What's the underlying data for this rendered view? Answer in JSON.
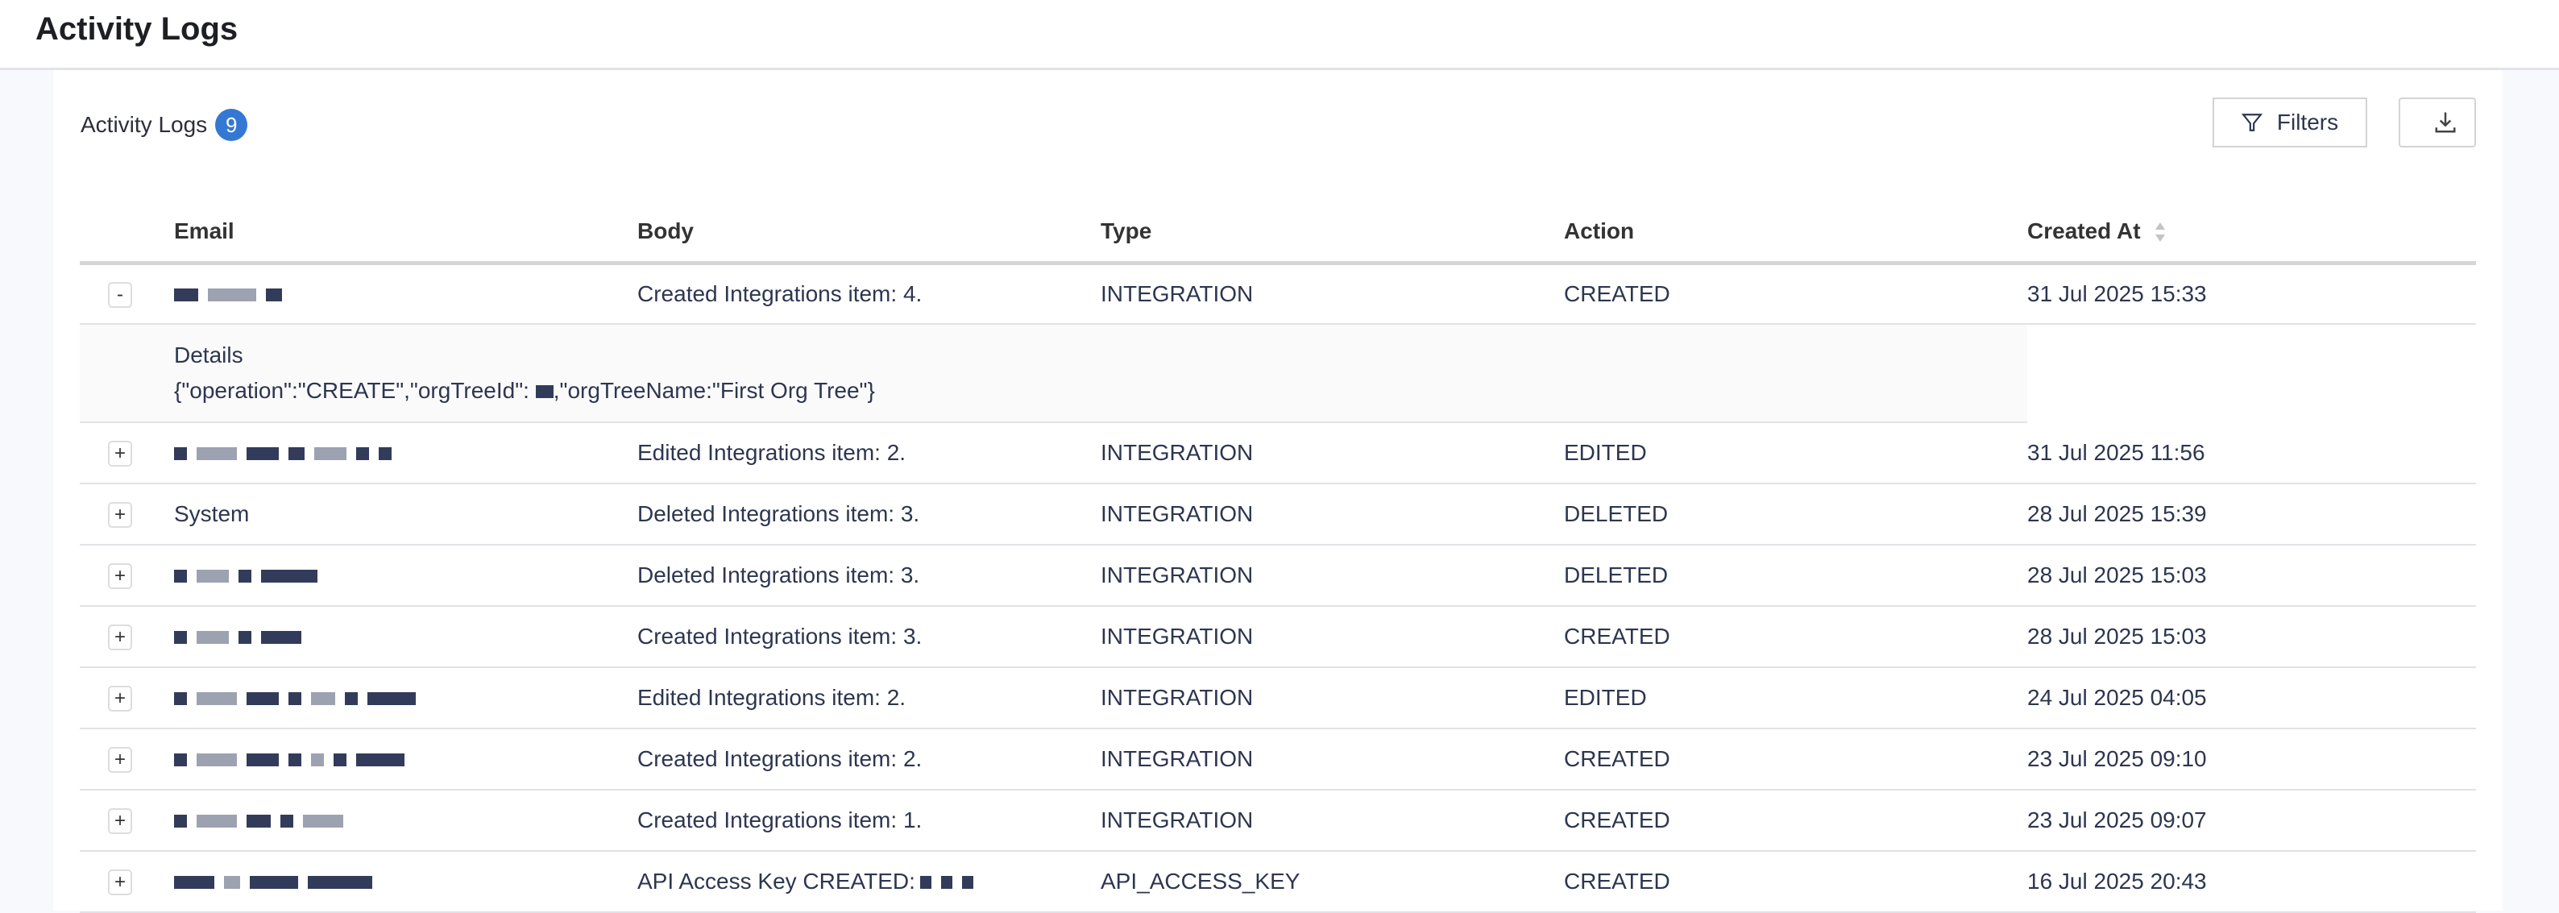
{
  "page": {
    "title": "Activity Logs"
  },
  "section": {
    "title": "Activity Logs",
    "count": "9",
    "filters_label": "Filters",
    "icons": {
      "filter": "filter-icon",
      "download": "download-icon",
      "sort": "sort-icon"
    }
  },
  "table": {
    "columns": [
      "Email",
      "Body",
      "Type",
      "Action",
      "Created At"
    ],
    "rows": [
      {
        "email": "",
        "body": "Created Integrations item: 4.",
        "type": "INTEGRATION",
        "action": "CREATED",
        "created": "31 Jul 2025 15:33",
        "expanded": true
      },
      {
        "email": "",
        "body": "Edited Integrations item: 2.",
        "type": "INTEGRATION",
        "action": "EDITED",
        "created": "31 Jul 2025 11:56"
      },
      {
        "email": "System",
        "body": "Deleted Integrations item: 3.",
        "type": "INTEGRATION",
        "action": "DELETED",
        "created": "28 Jul 2025 15:39"
      },
      {
        "email": "",
        "body": "Deleted Integrations item: 3.",
        "type": "INTEGRATION",
        "action": "DELETED",
        "created": "28 Jul 2025 15:03"
      },
      {
        "email": "",
        "body": "Created Integrations item: 3.",
        "type": "INTEGRATION",
        "action": "CREATED",
        "created": "28 Jul 2025 15:03"
      },
      {
        "email": "",
        "body": "Edited Integrations item: 2.",
        "type": "INTEGRATION",
        "action": "EDITED",
        "created": "24 Jul 2025 04:05"
      },
      {
        "email": "",
        "body": "Created Integrations item: 2.",
        "type": "INTEGRATION",
        "action": "CREATED",
        "created": "23 Jul 2025 09:10"
      },
      {
        "email": "",
        "body": "Created Integrations item: 1.",
        "type": "INTEGRATION",
        "action": "CREATED",
        "created": "23 Jul 2025 09:07"
      },
      {
        "email": "",
        "body": "API Access Key CREATED:",
        "type": "API_ACCESS_KEY",
        "action": "CREATED",
        "created": "16 Jul 2025 20:43"
      }
    ],
    "details": {
      "label": "Details",
      "json_prefix": "{\"operation\":\"CREATE\",\"orgTreeId\": ",
      "json_suffix": ",\"orgTreeName:\"First Org Tree\"}"
    },
    "collapse_symbol": "-",
    "expand_symbol": "+"
  }
}
